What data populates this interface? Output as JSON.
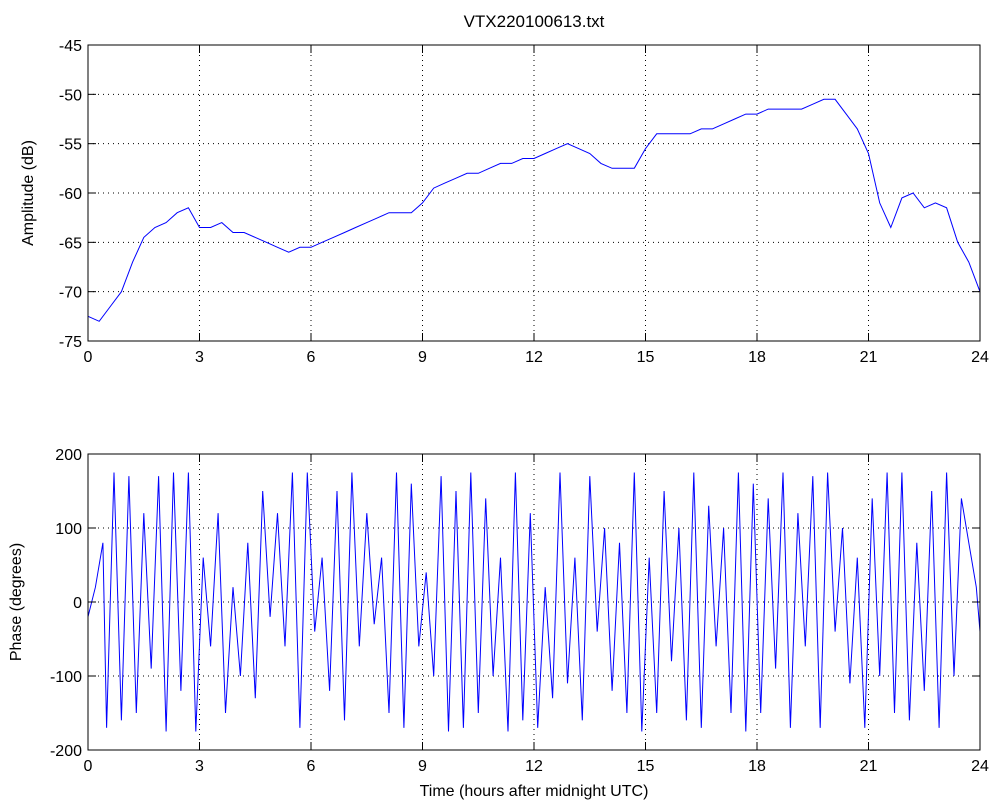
{
  "chart_data": [
    {
      "type": "line",
      "title": "VTX220100613.txt",
      "xlabel": "",
      "ylabel": "Amplitude (dB)",
      "xlim": [
        0,
        24
      ],
      "ylim": [
        -75,
        -45
      ],
      "xticks": [
        "0",
        "3",
        "6",
        "9",
        "12",
        "15",
        "18",
        "21",
        "24"
      ],
      "yticks": [
        "-75",
        "-70",
        "-65",
        "-60",
        "-55",
        "-50",
        "-45"
      ],
      "grid": true,
      "color": "#0000ff",
      "series": [
        {
          "x": [
            0,
            0.3,
            0.6,
            0.9,
            1.2,
            1.5,
            1.8,
            2.1,
            2.4,
            2.7,
            3.0,
            3.3,
            3.6,
            3.9,
            4.2,
            4.5,
            4.8,
            5.1,
            5.4,
            5.7,
            6.0,
            6.3,
            6.6,
            6.9,
            7.2,
            7.5,
            7.8,
            8.1,
            8.4,
            8.7,
            9.0,
            9.3,
            9.6,
            9.9,
            10.2,
            10.5,
            10.8,
            11.1,
            11.4,
            11.7,
            12.0,
            12.3,
            12.6,
            12.9,
            13.2,
            13.5,
            13.8,
            14.1,
            14.4,
            14.7,
            15.0,
            15.3,
            15.6,
            15.9,
            16.2,
            16.5,
            16.8,
            17.1,
            17.4,
            17.7,
            18.0,
            18.3,
            18.6,
            18.9,
            19.2,
            19.5,
            19.8,
            20.1,
            20.4,
            20.7,
            21.0,
            21.3,
            21.6,
            21.9,
            22.2,
            22.5,
            22.8,
            23.1,
            23.4,
            23.7,
            24.0
          ],
          "y": [
            -72.5,
            -73,
            -71.5,
            -70,
            -67,
            -64.5,
            -63.5,
            -63,
            -62,
            -61.5,
            -63.5,
            -63.5,
            -63,
            -64,
            -64,
            -64.5,
            -65,
            -65.5,
            -66,
            -65.5,
            -65.5,
            -65,
            -64.5,
            -64,
            -63.5,
            -63,
            -62.5,
            -62,
            -62,
            -62,
            -61,
            -59.5,
            -59,
            -58.5,
            -58,
            -58,
            -57.5,
            -57,
            -57,
            -56.5,
            -56.5,
            -56,
            -55.5,
            -55,
            -55.5,
            -56,
            -57,
            -57.5,
            -57.5,
            -57.5,
            -55.5,
            -54,
            -54,
            -54,
            -54,
            -53.5,
            -53.5,
            -53,
            -52.5,
            -52,
            -52,
            -51.5,
            -51.5,
            -51.5,
            -51.5,
            -51,
            -50.5,
            -50.5,
            -52,
            -53.5,
            -56,
            -61,
            -63.5,
            -60.5,
            -60,
            -61.5,
            -61,
            -61.5,
            -65,
            -67,
            -70
          ]
        }
      ]
    },
    {
      "type": "line",
      "title": "",
      "xlabel": "Time (hours after midnight UTC)",
      "ylabel": "Phase (degrees)",
      "xlim": [
        0,
        24
      ],
      "ylim": [
        -200,
        200
      ],
      "xticks": [
        "0",
        "3",
        "6",
        "9",
        "12",
        "15",
        "18",
        "21",
        "24"
      ],
      "yticks": [
        "-200",
        "-100",
        "0",
        "100",
        "200"
      ],
      "grid": true,
      "color": "#0000ff",
      "series": [
        {
          "x": [
            0,
            0.2,
            0.4,
            0.5,
            0.7,
            0.9,
            1.1,
            1.3,
            1.5,
            1.7,
            1.9,
            2.1,
            2.3,
            2.5,
            2.7,
            2.9,
            3.1,
            3.3,
            3.5,
            3.7,
            3.9,
            4.1,
            4.3,
            4.5,
            4.7,
            4.9,
            5.1,
            5.3,
            5.5,
            5.7,
            5.9,
            6.1,
            6.3,
            6.5,
            6.7,
            6.9,
            7.1,
            7.3,
            7.5,
            7.7,
            7.9,
            8.1,
            8.3,
            8.5,
            8.7,
            8.9,
            9.1,
            9.3,
            9.5,
            9.7,
            9.9,
            10.1,
            10.3,
            10.5,
            10.7,
            10.9,
            11.1,
            11.3,
            11.5,
            11.7,
            11.9,
            12.1,
            12.3,
            12.5,
            12.7,
            12.9,
            13.1,
            13.3,
            13.5,
            13.7,
            13.9,
            14.1,
            14.3,
            14.5,
            14.7,
            14.9,
            15.1,
            15.3,
            15.5,
            15.7,
            15.9,
            16.1,
            16.3,
            16.5,
            16.7,
            16.9,
            17.1,
            17.3,
            17.5,
            17.7,
            17.9,
            18.1,
            18.3,
            18.5,
            18.7,
            18.9,
            19.1,
            19.3,
            19.5,
            19.7,
            19.9,
            20.1,
            20.3,
            20.5,
            20.7,
            20.9,
            21.1,
            21.3,
            21.5,
            21.7,
            21.9,
            22.1,
            22.3,
            22.5,
            22.7,
            22.9,
            23.1,
            23.3,
            23.5,
            23.7,
            23.9,
            24.0
          ],
          "y": [
            -20,
            20,
            80,
            -170,
            175,
            -160,
            170,
            -150,
            120,
            -90,
            170,
            -175,
            175,
            -120,
            175,
            -175,
            60,
            -60,
            120,
            -150,
            20,
            -100,
            80,
            -130,
            150,
            -20,
            120,
            -60,
            175,
            -170,
            175,
            -40,
            60,
            -120,
            150,
            -160,
            175,
            -60,
            120,
            -30,
            60,
            -150,
            175,
            -170,
            160,
            -60,
            40,
            -100,
            170,
            -175,
            150,
            -170,
            175,
            -150,
            140,
            -100,
            60,
            -175,
            175,
            -160,
            120,
            -170,
            20,
            -130,
            175,
            -110,
            60,
            -160,
            170,
            -40,
            100,
            -120,
            80,
            -150,
            175,
            -175,
            60,
            -150,
            150,
            -80,
            100,
            -160,
            175,
            -170,
            130,
            -60,
            100,
            -150,
            175,
            -175,
            160,
            -150,
            140,
            -90,
            175,
            -170,
            120,
            -60,
            170,
            -170,
            175,
            -40,
            100,
            -110,
            60,
            -170,
            140,
            -100,
            175,
            -150,
            175,
            -160,
            80,
            -120,
            150,
            -170,
            175,
            -100,
            140,
            80,
            20,
            -40
          ]
        }
      ]
    }
  ]
}
